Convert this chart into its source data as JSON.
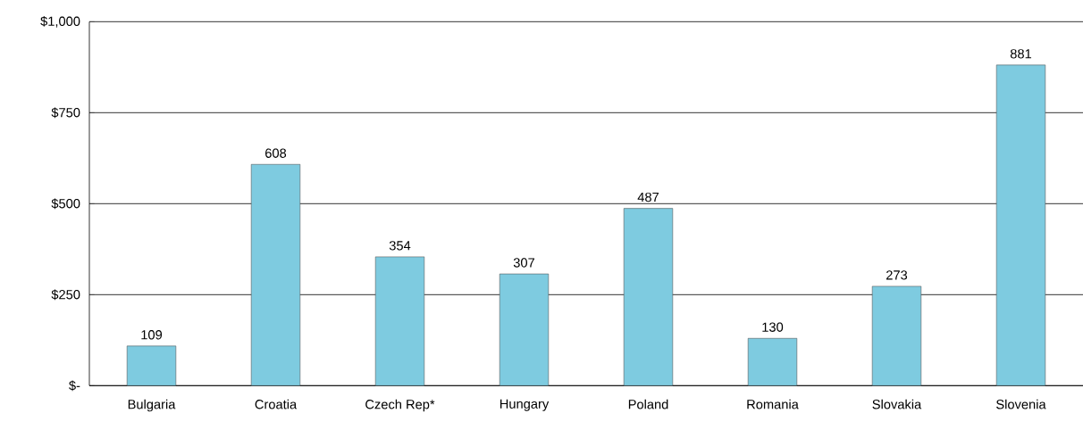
{
  "chart_data": {
    "type": "bar",
    "categories": [
      "Bulgaria",
      "Croatia",
      "Czech Rep*",
      "Hungary",
      "Poland",
      "Romania",
      "Slovakia",
      "Slovenia"
    ],
    "values": [
      109,
      608,
      354,
      307,
      487,
      130,
      273,
      881
    ],
    "color": "#7ecbe0",
    "ylim": [
      0,
      1000
    ],
    "yticks": [
      {
        "value": 0,
        "label": "$-"
      },
      {
        "value": 250,
        "label": "$250"
      },
      {
        "value": 500,
        "label": "$500"
      },
      {
        "value": 750,
        "label": "$750"
      },
      {
        "value": 1000,
        "label": "$1,000"
      }
    ],
    "grid": "y",
    "data_labels": true
  }
}
